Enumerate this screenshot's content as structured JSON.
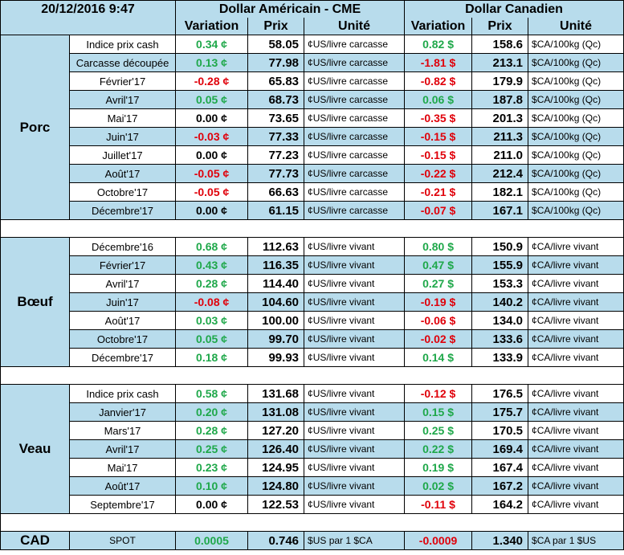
{
  "header": {
    "date": "20/12/2016 9:47",
    "usd_title": "Dollar Américain - CME",
    "cad_title": "Dollar Canadien",
    "col_variation": "Variation",
    "col_prix": "Prix",
    "col_unite": "Unité"
  },
  "sections": [
    {
      "name": "Porc",
      "rows": [
        {
          "label": "Indice prix cash",
          "usd_var": "0.34 ¢",
          "usd_price": "58.05",
          "usd_unit": "¢US/livre carcasse",
          "cad_var": "0.82 $",
          "cad_price": "158.6",
          "cad_unit": "$CA/100kg (Qc)"
        },
        {
          "label": "Carcasse découpée",
          "usd_var": "0.13 ¢",
          "usd_price": "77.98",
          "usd_unit": "¢US/livre carcasse",
          "cad_var": "-1.81 $",
          "cad_price": "213.1",
          "cad_unit": "$CA/100kg (Qc)"
        },
        {
          "label": "Février'17",
          "usd_var": "-0.28 ¢",
          "usd_price": "65.83",
          "usd_unit": "¢US/livre carcasse",
          "cad_var": "-0.82 $",
          "cad_price": "179.9",
          "cad_unit": "$CA/100kg (Qc)"
        },
        {
          "label": "Avril'17",
          "usd_var": "0.05 ¢",
          "usd_price": "68.73",
          "usd_unit": "¢US/livre carcasse",
          "cad_var": "0.06 $",
          "cad_price": "187.8",
          "cad_unit": "$CA/100kg (Qc)"
        },
        {
          "label": "Mai'17",
          "usd_var": "0.00 ¢",
          "usd_price": "73.65",
          "usd_unit": "¢US/livre carcasse",
          "cad_var": "-0.35 $",
          "cad_price": "201.3",
          "cad_unit": "$CA/100kg (Qc)"
        },
        {
          "label": "Juin'17",
          "usd_var": "-0.03 ¢",
          "usd_price": "77.33",
          "usd_unit": "¢US/livre carcasse",
          "cad_var": "-0.15 $",
          "cad_price": "211.3",
          "cad_unit": "$CA/100kg (Qc)"
        },
        {
          "label": "Juillet'17",
          "usd_var": "0.00 ¢",
          "usd_price": "77.23",
          "usd_unit": "¢US/livre carcasse",
          "cad_var": "-0.15 $",
          "cad_price": "211.0",
          "cad_unit": "$CA/100kg (Qc)"
        },
        {
          "label": "Août'17",
          "usd_var": "-0.05 ¢",
          "usd_price": "77.73",
          "usd_unit": "¢US/livre carcasse",
          "cad_var": "-0.22 $",
          "cad_price": "212.4",
          "cad_unit": "$CA/100kg (Qc)"
        },
        {
          "label": "Octobre'17",
          "usd_var": "-0.05 ¢",
          "usd_price": "66.63",
          "usd_unit": "¢US/livre carcasse",
          "cad_var": "-0.21 $",
          "cad_price": "182.1",
          "cad_unit": "$CA/100kg (Qc)"
        },
        {
          "label": "Décembre'17",
          "usd_var": "0.00 ¢",
          "usd_price": "61.15",
          "usd_unit": "¢US/livre carcasse",
          "cad_var": "-0.07 $",
          "cad_price": "167.1",
          "cad_unit": "$CA/100kg (Qc)"
        }
      ]
    },
    {
      "name": "Bœuf",
      "rows": [
        {
          "label": "Décembre'16",
          "usd_var": "0.68 ¢",
          "usd_price": "112.63",
          "usd_unit": "¢US/livre vivant",
          "cad_var": "0.80 $",
          "cad_price": "150.9",
          "cad_unit": "¢CA/livre vivant"
        },
        {
          "label": "Février'17",
          "usd_var": "0.43 ¢",
          "usd_price": "116.35",
          "usd_unit": "¢US/livre vivant",
          "cad_var": "0.47 $",
          "cad_price": "155.9",
          "cad_unit": "¢CA/livre vivant"
        },
        {
          "label": "Avril'17",
          "usd_var": "0.28 ¢",
          "usd_price": "114.40",
          "usd_unit": "¢US/livre vivant",
          "cad_var": "0.27 $",
          "cad_price": "153.3",
          "cad_unit": "¢CA/livre vivant"
        },
        {
          "label": "Juin'17",
          "usd_var": "-0.08 ¢",
          "usd_price": "104.60",
          "usd_unit": "¢US/livre vivant",
          "cad_var": "-0.19 $",
          "cad_price": "140.2",
          "cad_unit": "¢CA/livre vivant"
        },
        {
          "label": "Août'17",
          "usd_var": "0.03 ¢",
          "usd_price": "100.00",
          "usd_unit": "¢US/livre vivant",
          "cad_var": "-0.06 $",
          "cad_price": "134.0",
          "cad_unit": "¢CA/livre vivant"
        },
        {
          "label": "Octobre'17",
          "usd_var": "0.05 ¢",
          "usd_price": "99.70",
          "usd_unit": "¢US/livre vivant",
          "cad_var": "-0.02 $",
          "cad_price": "133.6",
          "cad_unit": "¢CA/livre vivant"
        },
        {
          "label": "Décembre'17",
          "usd_var": "0.18 ¢",
          "usd_price": "99.93",
          "usd_unit": "¢US/livre vivant",
          "cad_var": "0.14 $",
          "cad_price": "133.9",
          "cad_unit": "¢CA/livre vivant"
        }
      ]
    },
    {
      "name": "Veau",
      "rows": [
        {
          "label": "Indice prix cash",
          "usd_var": "0.58 ¢",
          "usd_price": "131.68",
          "usd_unit": "¢US/livre vivant",
          "cad_var": "-0.12 $",
          "cad_price": "176.5",
          "cad_unit": "¢CA/livre vivant"
        },
        {
          "label": "Janvier'17",
          "usd_var": "0.20 ¢",
          "usd_price": "131.08",
          "usd_unit": "¢US/livre vivant",
          "cad_var": "0.15 $",
          "cad_price": "175.7",
          "cad_unit": "¢CA/livre vivant"
        },
        {
          "label": "Mars'17",
          "usd_var": "0.28 ¢",
          "usd_price": "127.20",
          "usd_unit": "¢US/livre vivant",
          "cad_var": "0.25 $",
          "cad_price": "170.5",
          "cad_unit": "¢CA/livre vivant"
        },
        {
          "label": "Avril'17",
          "usd_var": "0.25 ¢",
          "usd_price": "126.40",
          "usd_unit": "¢US/livre vivant",
          "cad_var": "0.22 $",
          "cad_price": "169.4",
          "cad_unit": "¢CA/livre vivant"
        },
        {
          "label": "Mai'17",
          "usd_var": "0.23 ¢",
          "usd_price": "124.95",
          "usd_unit": "¢US/livre vivant",
          "cad_var": "0.19 $",
          "cad_price": "167.4",
          "cad_unit": "¢CA/livre vivant"
        },
        {
          "label": "Août'17",
          "usd_var": "0.10 ¢",
          "usd_price": "124.80",
          "usd_unit": "¢US/livre vivant",
          "cad_var": "0.02 $",
          "cad_price": "167.2",
          "cad_unit": "¢CA/livre vivant"
        },
        {
          "label": "Septembre'17",
          "usd_var": "0.00 ¢",
          "usd_price": "122.53",
          "usd_unit": "¢US/livre vivant",
          "cad_var": "-0.11 $",
          "cad_price": "164.2",
          "cad_unit": "¢CA/livre vivant"
        }
      ]
    }
  ],
  "cad": {
    "name": "CAD",
    "label": "SPOT",
    "usd_var": "0.0005",
    "usd_price": "0.746",
    "usd_unit": "$US par 1 $CA",
    "cad_var": "-0.0009",
    "cad_price": "1.340",
    "cad_unit": "$CA par 1 $US"
  },
  "colors": {
    "header_bg": "#b8dcec",
    "stripe_bg": "#b8dcec",
    "positive": "#1fa84a",
    "negative": "#e0000a",
    "neutral": "#000000"
  }
}
